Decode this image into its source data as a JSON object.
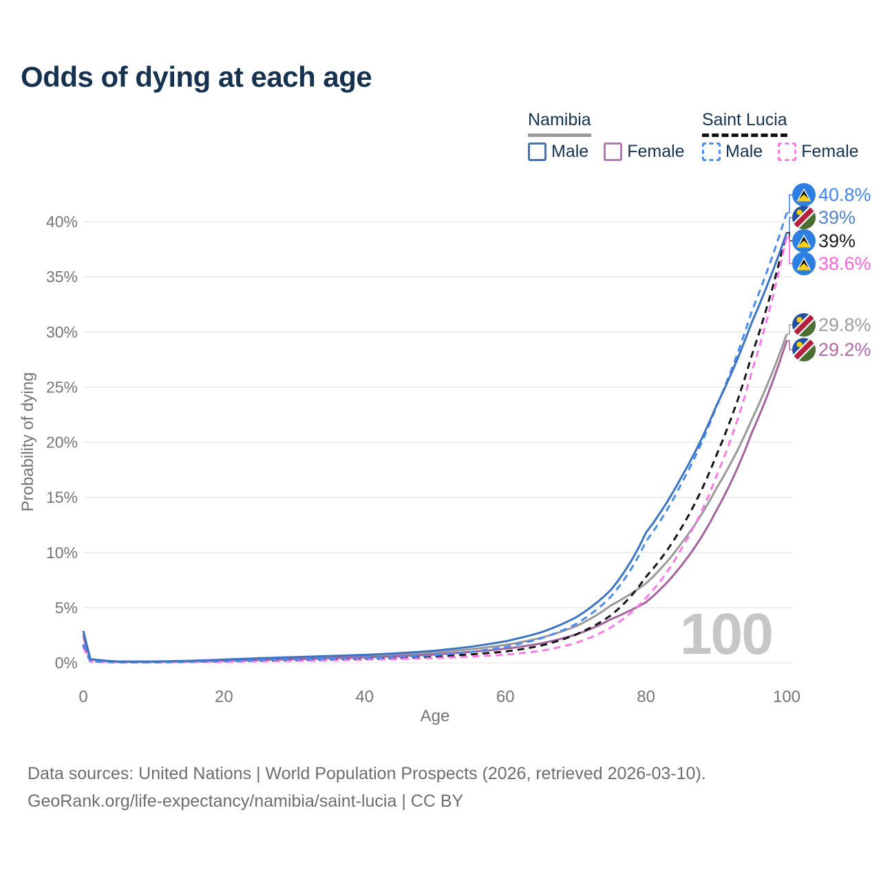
{
  "title": "Odds of dying at each age",
  "watermark_age": "100",
  "footer": {
    "line1": "Data sources: United Nations | World Population Prospects (2026, retrieved 2026-03-10).",
    "line2": "GeoRank.org/life-expectancy/namibia/saint-lucia | CC BY"
  },
  "colors": {
    "title_navy": "#16324f",
    "axis_gray": "#757575",
    "gridline": "#e8e8e8",
    "watermark_gray": "#c6c6c6",
    "footer_gray": "#6d6d6d"
  },
  "legend": {
    "groups": [
      {
        "country": "Namibia",
        "line_style": "solid",
        "underline_color": "#9a9a9a",
        "items": [
          {
            "label": "Male",
            "box_color": "#3c74c2",
            "box_style": "solid"
          },
          {
            "label": "Female",
            "box_color": "#b478b0",
            "box_style": "solid"
          }
        ]
      },
      {
        "country": "Saint Lucia",
        "line_style": "dashed",
        "underline_color": "#111111",
        "items": [
          {
            "label": "Male",
            "box_color": "#4a8cf0",
            "box_style": "dashed"
          },
          {
            "label": "Female",
            "box_color": "#fb7ae7",
            "box_style": "dashed"
          }
        ]
      }
    ]
  },
  "chart_data": {
    "type": "line",
    "title": "Odds of dying at each age",
    "xlabel": "Age",
    "ylabel": "Probability of dying",
    "xlim": [
      0,
      100
    ],
    "ylim_pct": [
      0,
      42
    ],
    "x_ticks": [
      0,
      20,
      40,
      60,
      80,
      100
    ],
    "y_ticks_pct": [
      0,
      5,
      10,
      15,
      20,
      25,
      30,
      35,
      40
    ],
    "grid": "horizontal-only",
    "legend_position": "top-right",
    "ages": [
      0,
      1,
      5,
      10,
      15,
      20,
      25,
      30,
      35,
      40,
      45,
      50,
      55,
      60,
      65,
      70,
      75,
      80,
      85,
      90,
      95,
      100
    ],
    "series": [
      {
        "id": "namibia-total",
        "country": "Namibia",
        "group": "Both sexes",
        "line": "solid",
        "color": "#9a9a9a",
        "flag": "namibia",
        "values": [
          2.65,
          0.32,
          0.11,
          0.11,
          0.15,
          0.24,
          0.34,
          0.43,
          0.52,
          0.61,
          0.74,
          0.92,
          1.22,
          1.62,
          2.25,
          3.3,
          5.2,
          7.2,
          10.8,
          15.8,
          22.0,
          29.8
        ],
        "end_label": {
          "text": "29.8%",
          "color": "#9e9e9e"
        }
      },
      {
        "id": "namibia-female",
        "country": "Namibia",
        "group": "Female",
        "line": "solid",
        "color": "#a4659e",
        "flag": "namibia",
        "values": [
          2.4,
          0.3,
          0.1,
          0.1,
          0.13,
          0.18,
          0.25,
          0.33,
          0.42,
          0.5,
          0.6,
          0.75,
          0.98,
          1.28,
          1.75,
          2.55,
          3.95,
          5.5,
          8.8,
          13.8,
          20.8,
          29.2
        ],
        "end_label": {
          "text": "29.2%",
          "color": "#b069a8"
        }
      },
      {
        "id": "saint-lucia-total",
        "country": "Saint Lucia",
        "group": "Both sexes",
        "line": "dashed",
        "color": "#141414",
        "flag": "saint-lucia",
        "values": [
          1.55,
          0.13,
          0.045,
          0.045,
          0.08,
          0.14,
          0.19,
          0.24,
          0.29,
          0.35,
          0.43,
          0.56,
          0.76,
          1.02,
          1.55,
          2.55,
          4.3,
          7.8,
          12.2,
          18.8,
          27.8,
          39.0
        ],
        "end_label": {
          "text": "39%",
          "color": "#1a1a1a"
        }
      },
      {
        "id": "saint-lucia-female",
        "country": "Saint Lucia",
        "group": "Female",
        "line": "dashed",
        "color": "#fb7ae7",
        "flag": "saint-lucia",
        "values": [
          1.4,
          0.12,
          0.04,
          0.04,
          0.06,
          0.1,
          0.14,
          0.18,
          0.23,
          0.28,
          0.34,
          0.43,
          0.56,
          0.74,
          1.08,
          1.8,
          3.2,
          5.9,
          10.3,
          16.9,
          26.3,
          38.6
        ],
        "end_label": {
          "text": "38.6%",
          "color": "#fb64dd"
        }
      },
      {
        "id": "saint-lucia-male",
        "country": "Saint Lucia",
        "group": "Male",
        "line": "dashed",
        "color": "#4a8cf0",
        "flag": "saint-lucia",
        "values": [
          1.7,
          0.15,
          0.05,
          0.05,
          0.1,
          0.18,
          0.25,
          0.31,
          0.36,
          0.43,
          0.53,
          0.7,
          0.98,
          1.45,
          2.2,
          3.5,
          6.0,
          11.0,
          16.2,
          23.2,
          31.8,
          40.8
        ],
        "end_label": {
          "text": "40.8%",
          "color": "#4285f4"
        }
      },
      {
        "id": "namibia-male",
        "country": "Namibia",
        "group": "Male",
        "line": "solid",
        "color": "#3c74c2",
        "flag": "namibia",
        "values": [
          2.9,
          0.35,
          0.12,
          0.12,
          0.18,
          0.3,
          0.42,
          0.52,
          0.62,
          0.72,
          0.88,
          1.1,
          1.45,
          1.95,
          2.75,
          4.1,
          6.6,
          11.8,
          16.8,
          23.3,
          30.8,
          39.0
        ],
        "end_label": {
          "text": "39%",
          "color": "#5585c7"
        }
      }
    ]
  }
}
